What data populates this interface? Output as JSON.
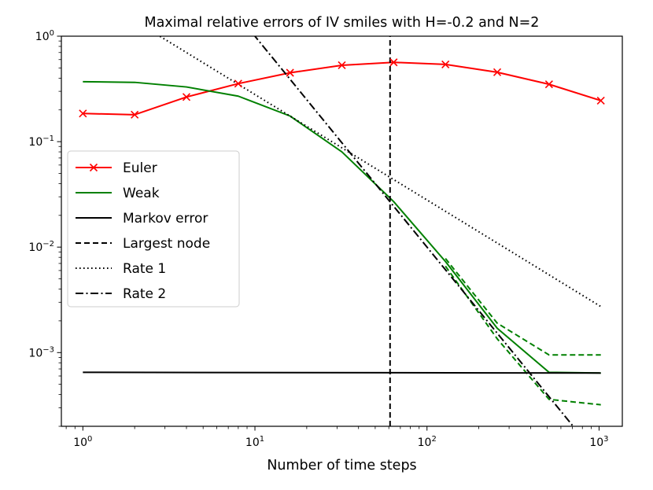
{
  "chart_data": {
    "type": "line",
    "title": "Maximal relative errors of IV smiles with H=-0.2 and N=2",
    "xlabel": "Number of time steps",
    "ylabel": "",
    "xscale": "log",
    "yscale": "log",
    "xlim": [
      0.75,
      1365
    ],
    "ylim": [
      0.0002,
      1.0
    ],
    "x_ticks": [
      {
        "value": 1,
        "base": "10",
        "exp": "0"
      },
      {
        "value": 10,
        "base": "10",
        "exp": "1"
      },
      {
        "value": 100,
        "base": "10",
        "exp": "2"
      },
      {
        "value": 1000,
        "base": "10",
        "exp": "3"
      }
    ],
    "y_ticks": [
      {
        "value": 0.001,
        "base": "10",
        "exp": "−3"
      },
      {
        "value": 0.01,
        "base": "10",
        "exp": "−2"
      },
      {
        "value": 0.1,
        "base": "10",
        "exp": "−1"
      },
      {
        "value": 1,
        "base": "10",
        "exp": "0"
      }
    ],
    "legend_position": "center-left",
    "legend": [
      {
        "label": "Euler",
        "color": "#ff0000",
        "style": "solid",
        "marker": "x"
      },
      {
        "label": "Weak",
        "color": "#008000",
        "style": "solid",
        "marker": "none"
      },
      {
        "label": "Markov error",
        "color": "#000000",
        "style": "solid",
        "marker": "none"
      },
      {
        "label": "Largest node",
        "color": "#000000",
        "style": "dashed",
        "marker": "none"
      },
      {
        "label": "Rate 1",
        "color": "#000000",
        "style": "dotted",
        "marker": "none"
      },
      {
        "label": "Rate 2",
        "color": "#000000",
        "style": "dashdot",
        "marker": "none"
      }
    ],
    "series": [
      {
        "name": "Euler",
        "color": "#ff0000",
        "style": "solid",
        "marker": "x",
        "x": [
          1,
          2,
          4,
          8,
          16,
          32,
          64,
          128,
          256,
          512,
          1024
        ],
        "y": [
          0.185,
          0.18,
          0.265,
          0.355,
          0.45,
          0.53,
          0.565,
          0.54,
          0.455,
          0.35,
          0.245
        ]
      },
      {
        "name": "Weak",
        "color": "#008000",
        "style": "solid",
        "marker": "none",
        "x": [
          1,
          2,
          4,
          8,
          16,
          32,
          64,
          128,
          256,
          512,
          1024
        ],
        "y": [
          0.37,
          0.365,
          0.33,
          0.27,
          0.175,
          0.08,
          0.027,
          0.0073,
          0.0017,
          0.00065,
          0.00064
        ]
      },
      {
        "name": "",
        "color": "#008000",
        "style": "dashed",
        "marker": "none",
        "x": [
          128,
          256,
          512,
          1024
        ],
        "y": [
          0.0078,
          0.0019,
          0.00095,
          0.00095
        ]
      },
      {
        "name": "",
        "color": "#008000",
        "style": "dashed",
        "marker": "none",
        "x": [
          128,
          256,
          512,
          1024
        ],
        "y": [
          0.0066,
          0.00135,
          0.00036,
          0.00032
        ]
      },
      {
        "name": "Markov error",
        "color": "#000000",
        "style": "solid",
        "marker": "none",
        "x": [
          1,
          1024
        ],
        "y": [
          0.00065,
          0.00064
        ]
      },
      {
        "name": "Largest node",
        "color": "#000000",
        "style": "dashed",
        "marker": "none",
        "x": [
          61,
          61
        ],
        "y": [
          0.0002,
          1.0
        ]
      },
      {
        "name": "Rate 1",
        "color": "#000000",
        "style": "dotted",
        "marker": "none",
        "x": [
          1,
          1024
        ],
        "y": [
          2.8,
          0.00273
        ]
      },
      {
        "name": "Rate 2",
        "color": "#000000",
        "style": "dashdot",
        "marker": "none",
        "x": [
          1,
          1024
        ],
        "y": [
          100,
          9.54e-05
        ]
      }
    ]
  }
}
